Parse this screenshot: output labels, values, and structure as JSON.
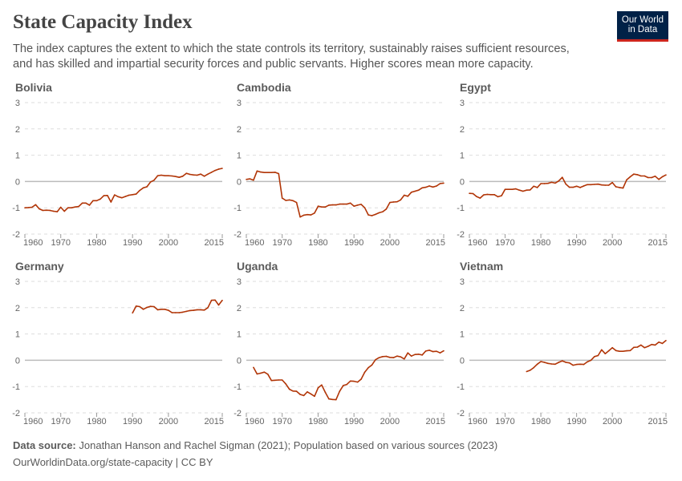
{
  "header": {
    "title": "State Capacity Index",
    "subtitle": "The index captures the extent to which the state controls its territory, sustainably raises sufficient resources, and has skilled and impartial security forces and public servants. Higher scores mean more capacity.",
    "logo_text": "Our World in Data"
  },
  "footer": {
    "source_label": "Data source:",
    "source_text": "Jonathan Hanson and Rachel Sigman (2021); Population based on various sources (2023)",
    "url_license": "OurWorldinData.org/state-capacity | CC BY"
  },
  "colors": {
    "line": "#b13507",
    "zero_line": "#bbbbbb",
    "grid": "#dddddd",
    "logo_bg": "#002147",
    "logo_accent": "#ce261e"
  },
  "chart_data": [
    {
      "type": "line",
      "title": "Bolivia",
      "xlim": [
        1960,
        2015
      ],
      "ylim": [
        -2,
        3
      ],
      "x_ticks": [
        "1960",
        "1970",
        "1980",
        "1990",
        "2000",
        "2015"
      ],
      "y_ticks": [
        "3",
        "2",
        "1",
        "0",
        "-1",
        "-2"
      ],
      "grid": "horizontal-dashed",
      "x_start": 1960,
      "values": [
        -1.0,
        -0.99,
        -0.98,
        -0.88,
        -1.04,
        -1.1,
        -1.09,
        -1.1,
        -1.13,
        -1.15,
        -0.98,
        -1.13,
        -1.0,
        -1.0,
        -0.97,
        -0.95,
        -0.82,
        -0.82,
        -0.9,
        -0.73,
        -0.73,
        -0.67,
        -0.54,
        -0.53,
        -0.78,
        -0.51,
        -0.58,
        -0.62,
        -0.57,
        -0.52,
        -0.5,
        -0.48,
        -0.34,
        -0.24,
        -0.2,
        -0.02,
        0.05,
        0.22,
        0.24,
        0.22,
        0.22,
        0.21,
        0.19,
        0.16,
        0.2,
        0.31,
        0.27,
        0.25,
        0.24,
        0.28,
        0.2,
        0.28,
        0.35,
        0.42,
        0.47,
        0.5
      ]
    },
    {
      "type": "line",
      "title": "Cambodia",
      "xlim": [
        1960,
        2015
      ],
      "ylim": [
        -2,
        3
      ],
      "x_ticks": [
        "1960",
        "1970",
        "1980",
        "1990",
        "2000",
        "2015"
      ],
      "y_ticks": [
        "3",
        "2",
        "1",
        "0",
        "-1",
        "-2"
      ],
      "grid": "horizontal-dashed",
      "x_start": 1960,
      "values": [
        0.08,
        0.1,
        0.05,
        0.4,
        0.36,
        0.34,
        0.34,
        0.34,
        0.35,
        0.3,
        -0.63,
        -0.72,
        -0.7,
        -0.73,
        -0.8,
        -1.35,
        -1.28,
        -1.26,
        -1.27,
        -1.2,
        -0.94,
        -0.97,
        -0.97,
        -0.9,
        -0.89,
        -0.89,
        -0.86,
        -0.86,
        -0.86,
        -0.82,
        -0.94,
        -0.9,
        -0.87,
        -1.0,
        -1.27,
        -1.3,
        -1.25,
        -1.19,
        -1.15,
        -1.05,
        -0.8,
        -0.78,
        -0.77,
        -0.7,
        -0.52,
        -0.56,
        -0.41,
        -0.37,
        -0.33,
        -0.24,
        -0.22,
        -0.17,
        -0.21,
        -0.17,
        -0.08,
        -0.06
      ]
    },
    {
      "type": "line",
      "title": "Egypt",
      "xlim": [
        1960,
        2015
      ],
      "ylim": [
        -2,
        3
      ],
      "x_ticks": [
        "1960",
        "1970",
        "1980",
        "1990",
        "2000",
        "2015"
      ],
      "y_ticks": [
        "3",
        "2",
        "1",
        "0",
        "-1",
        "-2"
      ],
      "grid": "horizontal-dashed",
      "x_start": 1960,
      "values": [
        -0.45,
        -0.46,
        -0.57,
        -0.63,
        -0.51,
        -0.49,
        -0.5,
        -0.5,
        -0.58,
        -0.54,
        -0.3,
        -0.3,
        -0.3,
        -0.28,
        -0.33,
        -0.37,
        -0.33,
        -0.32,
        -0.18,
        -0.23,
        -0.08,
        -0.08,
        -0.07,
        -0.03,
        -0.06,
        0.02,
        0.16,
        -0.1,
        -0.22,
        -0.22,
        -0.18,
        -0.23,
        -0.17,
        -0.12,
        -0.12,
        -0.11,
        -0.1,
        -0.13,
        -0.14,
        -0.14,
        -0.04,
        -0.2,
        -0.23,
        -0.25,
        0.06,
        0.18,
        0.28,
        0.26,
        0.21,
        0.21,
        0.15,
        0.15,
        0.2,
        0.08,
        0.18,
        0.25
      ]
    },
    {
      "type": "line",
      "title": "Germany",
      "xlim": [
        1960,
        2015
      ],
      "ylim": [
        -2,
        3
      ],
      "x_ticks": [
        "1960",
        "1970",
        "1980",
        "1990",
        "2000",
        "2015"
      ],
      "y_ticks": [
        "3",
        "2",
        "1",
        "0",
        "-1",
        "-2"
      ],
      "grid": "horizontal-dashed",
      "x_start": 1990,
      "values": [
        1.8,
        2.06,
        2.04,
        1.94,
        2.01,
        2.05,
        2.04,
        1.92,
        1.94,
        1.94,
        1.9,
        1.81,
        1.81,
        1.81,
        1.83,
        1.86,
        1.89,
        1.9,
        1.92,
        1.92,
        1.91,
        2.0,
        2.28,
        2.29,
        2.1,
        2.28
      ]
    },
    {
      "type": "line",
      "title": "Uganda",
      "xlim": [
        1960,
        2015
      ],
      "ylim": [
        -2,
        3
      ],
      "x_ticks": [
        "1960",
        "1970",
        "1980",
        "1990",
        "2000",
        "2015"
      ],
      "y_ticks": [
        "3",
        "2",
        "1",
        "0",
        "-1",
        "-2"
      ],
      "grid": "horizontal-dashed",
      "x_start": 1962,
      "values": [
        -0.27,
        -0.52,
        -0.49,
        -0.45,
        -0.53,
        -0.77,
        -0.76,
        -0.75,
        -0.75,
        -0.9,
        -1.1,
        -1.17,
        -1.18,
        -1.3,
        -1.34,
        -1.2,
        -1.28,
        -1.37,
        -1.05,
        -0.94,
        -1.22,
        -1.47,
        -1.49,
        -1.5,
        -1.18,
        -0.96,
        -0.92,
        -0.79,
        -0.8,
        -0.83,
        -0.72,
        -0.45,
        -0.28,
        -0.18,
        0.02,
        0.1,
        0.14,
        0.15,
        0.11,
        0.1,
        0.16,
        0.13,
        0.05,
        0.28,
        0.16,
        0.22,
        0.23,
        0.2,
        0.35,
        0.38,
        0.33,
        0.34,
        0.28,
        0.36
      ]
    },
    {
      "type": "line",
      "title": "Vietnam",
      "xlim": [
        1960,
        2015
      ],
      "ylim": [
        -2,
        3
      ],
      "x_ticks": [
        "1960",
        "1970",
        "1980",
        "1990",
        "2000",
        "2015"
      ],
      "y_ticks": [
        "3",
        "2",
        "1",
        "0",
        "-1",
        "-2"
      ],
      "grid": "horizontal-dashed",
      "x_start": 1976,
      "values": [
        -0.43,
        -0.38,
        -0.28,
        -0.15,
        -0.05,
        -0.08,
        -0.12,
        -0.14,
        -0.15,
        -0.08,
        -0.02,
        -0.08,
        -0.1,
        -0.19,
        -0.16,
        -0.15,
        -0.16,
        -0.06,
        0.0,
        0.14,
        0.18,
        0.4,
        0.25,
        0.36,
        0.48,
        0.37,
        0.34,
        0.34,
        0.36,
        0.37,
        0.49,
        0.5,
        0.58,
        0.48,
        0.53,
        0.6,
        0.58,
        0.69,
        0.64,
        0.75
      ]
    }
  ]
}
